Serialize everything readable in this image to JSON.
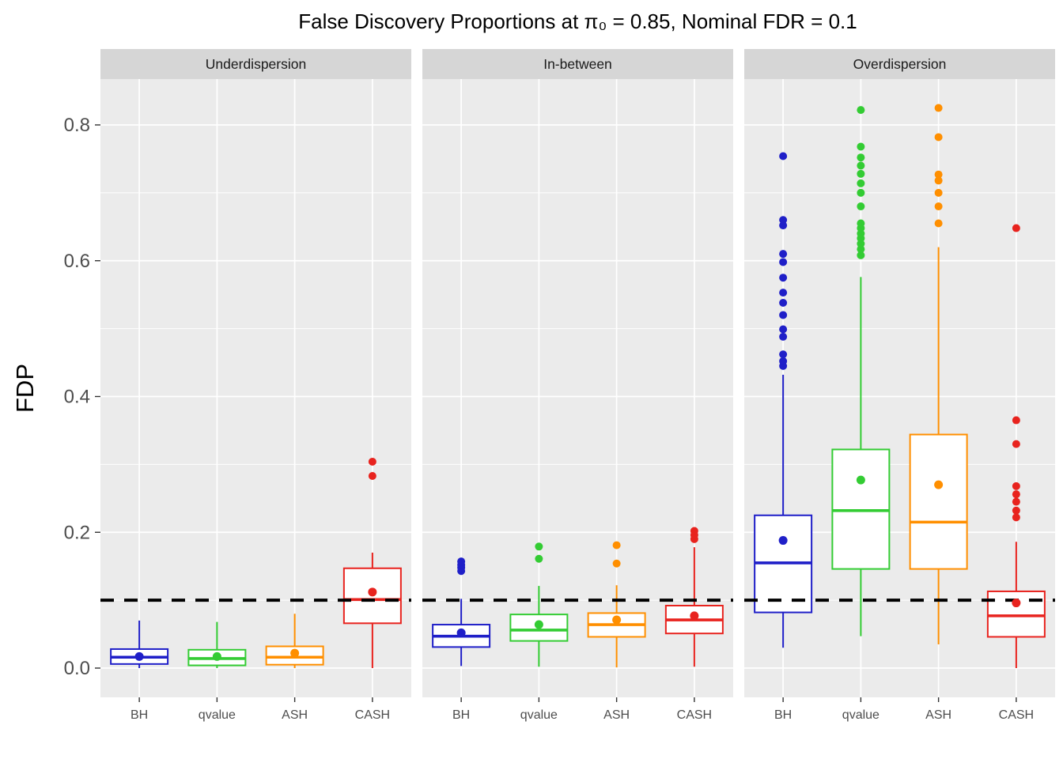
{
  "page": {
    "background": "#FFFFFF"
  },
  "chart_data": {
    "type": "boxplot",
    "title": "False Discovery Proportions at π₀ = 0.85, Nominal FDR = 0.1",
    "xlabel": "",
    "ylabel": "FDP",
    "ylim": [
      -0.043,
      0.867
    ],
    "yticks": [
      0.0,
      0.2,
      0.4,
      0.6,
      0.8
    ],
    "ytick_labels": [
      "0.0",
      "0.2",
      "0.4",
      "0.6",
      "0.8"
    ],
    "minor_gridlines": [
      0.1,
      0.3,
      0.5,
      0.7
    ],
    "grid": true,
    "legend_position": "none",
    "panel_bg": "#EBEBEB",
    "strip_bg": "#D6D6D6",
    "grid_color": "#FFFFFF",
    "tick_label_color": "#4D4D4D",
    "strip_label_color": "#1A1A1A",
    "reference_line": {
      "y": 0.1,
      "color": "#000000",
      "style": "dashed"
    },
    "categories": [
      "BH",
      "qvalue",
      "ASH",
      "CASH"
    ],
    "colors": {
      "BH": "#1F1FC8",
      "qvalue": "#33CC33",
      "ASH": "#FF8F00",
      "CASH": "#E8231E"
    },
    "facets": [
      {
        "label": "Underdispersion",
        "boxes": [
          {
            "method": "BH",
            "whisker_low": 0.0,
            "q1": 0.006,
            "median": 0.016,
            "q3": 0.028,
            "whisker_high": 0.07,
            "mean": 0.017,
            "outliers": []
          },
          {
            "method": "qvalue",
            "whisker_low": 0.0,
            "q1": 0.004,
            "median": 0.014,
            "q3": 0.027,
            "whisker_high": 0.068,
            "mean": 0.017,
            "outliers": []
          },
          {
            "method": "ASH",
            "whisker_low": 0.0,
            "q1": 0.005,
            "median": 0.016,
            "q3": 0.032,
            "whisker_high": 0.08,
            "mean": 0.022,
            "outliers": []
          },
          {
            "method": "CASH",
            "whisker_low": 0.0,
            "q1": 0.066,
            "median": 0.101,
            "q3": 0.147,
            "whisker_high": 0.17,
            "mean": 0.112,
            "outliers": [
              0.283,
              0.304
            ]
          }
        ]
      },
      {
        "label": "In-between",
        "boxes": [
          {
            "method": "BH",
            "whisker_low": 0.003,
            "q1": 0.031,
            "median": 0.047,
            "q3": 0.064,
            "whisker_high": 0.102,
            "mean": 0.052,
            "outliers": [
              0.143,
              0.148,
              0.152,
              0.157
            ]
          },
          {
            "method": "qvalue",
            "whisker_low": 0.002,
            "q1": 0.04,
            "median": 0.056,
            "q3": 0.079,
            "whisker_high": 0.121,
            "mean": 0.064,
            "outliers": [
              0.161,
              0.179
            ]
          },
          {
            "method": "ASH",
            "whisker_low": 0.001,
            "q1": 0.046,
            "median": 0.064,
            "q3": 0.081,
            "whisker_high": 0.122,
            "mean": 0.071,
            "outliers": [
              0.154,
              0.181
            ]
          },
          {
            "method": "CASH",
            "whisker_low": 0.002,
            "q1": 0.051,
            "median": 0.071,
            "q3": 0.092,
            "whisker_high": 0.178,
            "mean": 0.077,
            "outliers": [
              0.19,
              0.196,
              0.202
            ]
          }
        ]
      },
      {
        "label": "Overdispersion",
        "boxes": [
          {
            "method": "BH",
            "whisker_low": 0.03,
            "q1": 0.082,
            "median": 0.155,
            "q3": 0.225,
            "whisker_high": 0.432,
            "mean": 0.188,
            "outliers": [
              0.445,
              0.452,
              0.462,
              0.488,
              0.499,
              0.52,
              0.538,
              0.553,
              0.575,
              0.598,
              0.61,
              0.652,
              0.66,
              0.754
            ]
          },
          {
            "method": "qvalue",
            "whisker_low": 0.047,
            "q1": 0.146,
            "median": 0.232,
            "q3": 0.322,
            "whisker_high": 0.576,
            "mean": 0.277,
            "outliers": [
              0.608,
              0.617,
              0.625,
              0.633,
              0.64,
              0.648,
              0.655,
              0.68,
              0.7,
              0.714,
              0.728,
              0.74,
              0.752,
              0.768,
              0.822
            ]
          },
          {
            "method": "ASH",
            "whisker_low": 0.035,
            "q1": 0.146,
            "median": 0.215,
            "q3": 0.344,
            "whisker_high": 0.62,
            "mean": 0.27,
            "outliers": [
              0.655,
              0.68,
              0.7,
              0.718,
              0.727,
              0.782,
              0.825
            ]
          },
          {
            "method": "CASH",
            "whisker_low": 0.0,
            "q1": 0.046,
            "median": 0.077,
            "q3": 0.113,
            "whisker_high": 0.186,
            "mean": 0.096,
            "outliers": [
              0.222,
              0.232,
              0.245,
              0.256,
              0.268,
              0.33,
              0.365,
              0.648
            ]
          }
        ]
      }
    ]
  }
}
